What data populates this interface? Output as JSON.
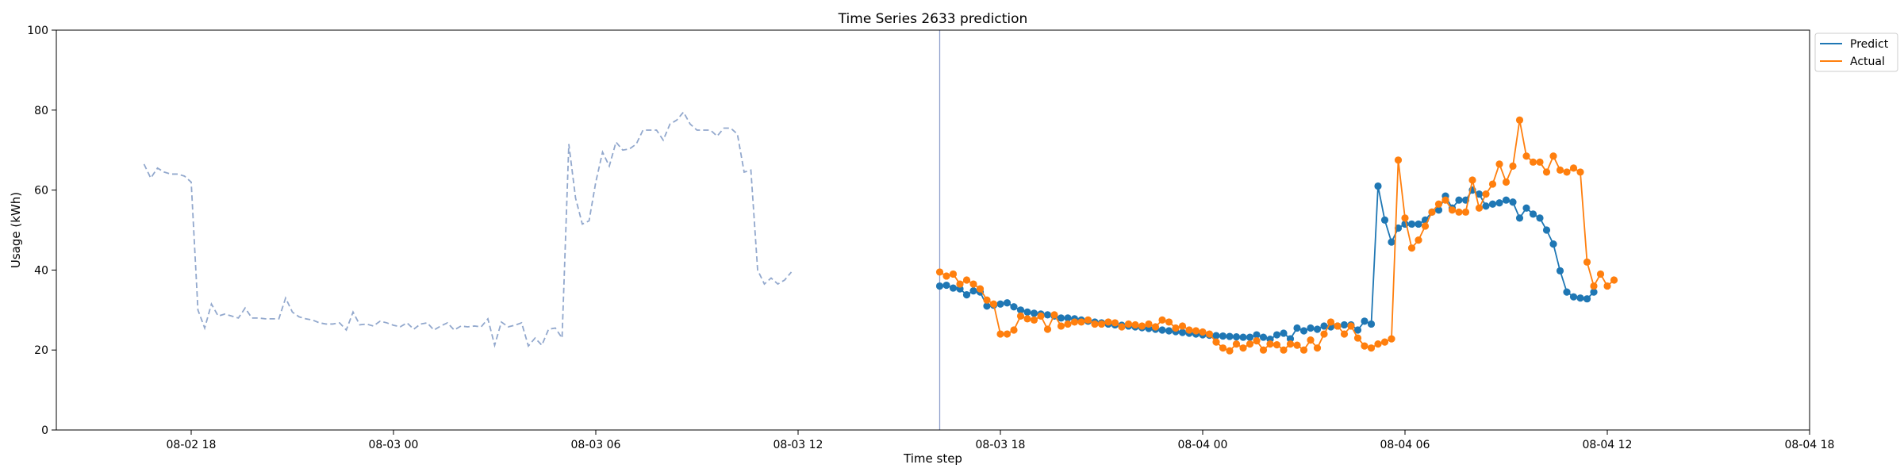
{
  "chart_data": {
    "type": "line",
    "title": "Time Series 2633 prediction",
    "xlabel": "Time step",
    "ylabel": "Usage (kWh)",
    "ylim": [
      0,
      100
    ],
    "yticks": [
      0,
      20,
      40,
      60,
      80,
      100
    ],
    "xlim": [
      -20,
      240
    ],
    "xticks": [
      {
        "x": 0,
        "label": "08-02 18"
      },
      {
        "x": 30,
        "label": "08-03 00"
      },
      {
        "x": 60,
        "label": "08-03 06"
      },
      {
        "x": 90,
        "label": "08-03 12"
      },
      {
        "x": 120,
        "label": "08-03 18"
      },
      {
        "x": 150,
        "label": "08-04 00"
      },
      {
        "x": 180,
        "label": "08-04 06"
      },
      {
        "x": 210,
        "label": "08-04 12"
      },
      {
        "x": 240,
        "label": "08-04 18"
      }
    ],
    "forecast_start_x": 111,
    "legend_position": "top-right",
    "colors": {
      "history": "#92a8cd",
      "predict": "#1f77b4",
      "actual": "#ff7f0e",
      "divider": "#8e9fcc"
    },
    "history": {
      "x_start": -7,
      "values": [
        66.5,
        63,
        65.5,
        64.5,
        64,
        64,
        63.5,
        62,
        30,
        25.5,
        31.5,
        28.5,
        29,
        28.5,
        28,
        30.5,
        28,
        28,
        27.8,
        27.8,
        27.8,
        33,
        29.5,
        28.3,
        27.8,
        27.5,
        26.8,
        26.5,
        26.5,
        26.8,
        25,
        29.5,
        26.3,
        26.5,
        26,
        27.2,
        26.8,
        26.2,
        25.8,
        26.8,
        25.2,
        26.5,
        26.8,
        25,
        26,
        26.8,
        25,
        26,
        25.8,
        26,
        25.8,
        27.8,
        21.2,
        27,
        25.8,
        26.2,
        26.8,
        21,
        23,
        21.2,
        25.2,
        25.5,
        23,
        71.5,
        58,
        51.5,
        52.3,
        62,
        69.5,
        66,
        72,
        70,
        70.3,
        71.5,
        75,
        75,
        75,
        72.5,
        76.5,
        77.5,
        79.5,
        76.5,
        75,
        75,
        75,
        73.5,
        75.5,
        75.5,
        74,
        64.5,
        65,
        40,
        36.5,
        38,
        36.5,
        37.5,
        39.5
      ]
    },
    "series": [
      {
        "name": "Predict",
        "x_start": 111,
        "values": [
          36,
          36.2,
          35.5,
          35.3,
          33.8,
          34.8,
          34.5,
          31,
          31.2,
          31.5,
          31.8,
          30.8,
          30,
          29.5,
          29.2,
          29,
          28.8,
          28.5,
          28,
          28,
          27.8,
          27.5,
          27.2,
          27,
          26.8,
          26.5,
          26.3,
          26.2,
          26,
          25.8,
          25.6,
          25.4,
          25.2,
          25,
          24.8,
          24.6,
          24.4,
          24.2,
          24,
          23.8,
          23.7,
          23.6,
          23.5,
          23.4,
          23.3,
          23.2,
          23.2,
          23.8,
          23.2,
          22.7,
          23.8,
          24.2,
          22.8,
          25.5,
          24.8,
          25.5,
          25.2,
          26,
          25.8,
          26,
          26.3,
          26.3,
          25,
          27.2,
          26.5,
          61,
          52.5,
          47,
          50.5,
          51.5,
          51.5,
          51.5,
          52.5,
          54.5,
          55,
          58.5,
          55.5,
          57.5,
          57.5,
          60,
          59,
          56,
          56.5,
          56.8,
          57.5,
          57,
          53,
          55.5,
          54,
          53,
          50,
          46.5,
          39.8,
          34.5,
          33.3,
          33,
          32.8,
          34.5
        ]
      },
      {
        "name": "Actual",
        "x_start": 111,
        "values": [
          39.5,
          38.5,
          39,
          36.5,
          37.5,
          36.5,
          35.3,
          32.5,
          31.5,
          24,
          24,
          25,
          28.5,
          27.8,
          27.5,
          28.5,
          25.2,
          28.8,
          26,
          26.5,
          27,
          27,
          27.5,
          26.5,
          26.5,
          27,
          26.8,
          25.8,
          26.5,
          26.3,
          26,
          26.5,
          25.8,
          27.5,
          27,
          25.5,
          26,
          25,
          24.8,
          24.5,
          24,
          22,
          20.5,
          19.8,
          21.5,
          20.5,
          21.5,
          22.3,
          20,
          21.5,
          21.3,
          20,
          21.5,
          21.2,
          20,
          22.5,
          20.5,
          24,
          27,
          26,
          24,
          26,
          23,
          21,
          20.5,
          21.5,
          22,
          22.8,
          67.5,
          53,
          45.5,
          47.5,
          51,
          54.5,
          56.5,
          57.5,
          55,
          54.5,
          54.5,
          62.5,
          55.5,
          59,
          61.5,
          66.5,
          62,
          66,
          77.5,
          68.5,
          67,
          67,
          64.5,
          68.5,
          65,
          64.5,
          65.5,
          64.5,
          42,
          36,
          39,
          36,
          37.5
        ]
      }
    ]
  }
}
